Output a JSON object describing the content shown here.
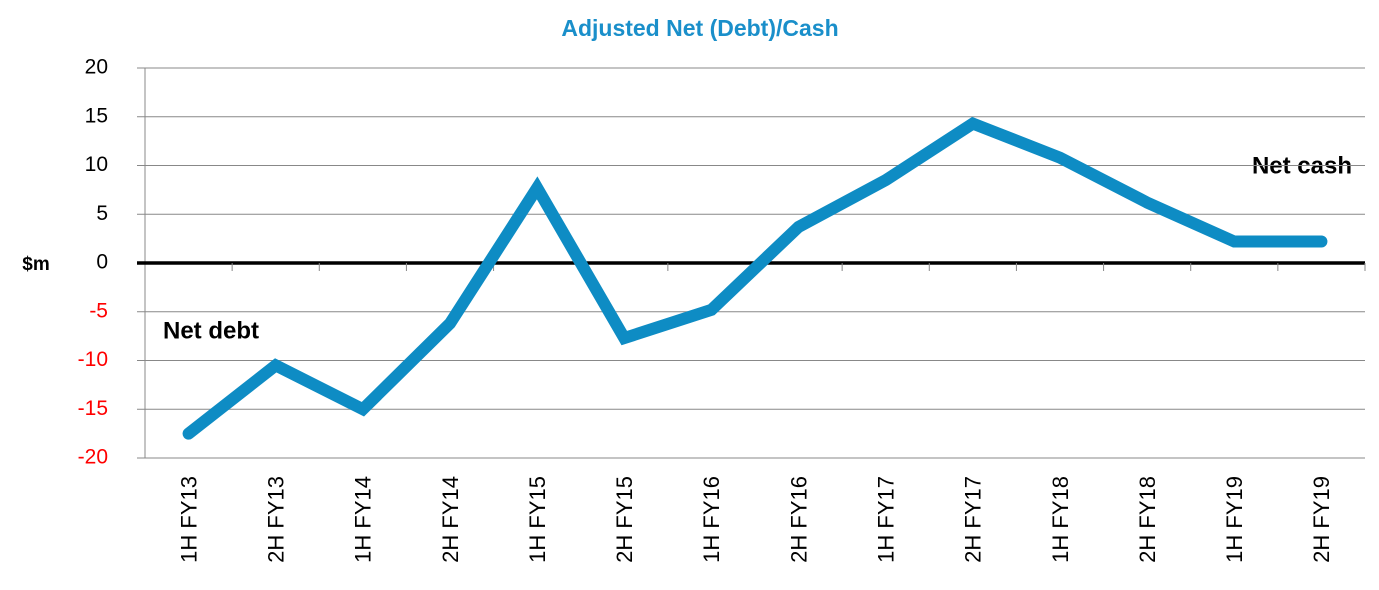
{
  "chart_data": {
    "type": "line",
    "title": "Adjusted Net (Debt)/Cash",
    "y_label": "$m",
    "annotations": [
      "Net debt",
      "Net cash"
    ],
    "categories": [
      "1H FY13",
      "2H FY13",
      "1H FY14",
      "2H FY14",
      "1H FY15",
      "2H FY15",
      "1H FY16",
      "2H FY16",
      "1H FY17",
      "2H FY17",
      "1H FY18",
      "2H FY18",
      "1H FY19",
      "2H FY19"
    ],
    "values": [
      -17.5,
      -10.5,
      -15,
      -6.2,
      7.7,
      -7.7,
      -4.8,
      3.7,
      8.5,
      14.3,
      10.8,
      6.2,
      2.2,
      2.2
    ],
    "color": "#0e8cc4",
    "title_color": "#1a8fca",
    "negative_tick_color": "#ff0000",
    "ylim": [
      -20,
      20
    ],
    "yticks": [
      -20,
      -15,
      -10,
      -5,
      0,
      5,
      10,
      15,
      20
    ],
    "grid": true,
    "zero_line": true
  }
}
